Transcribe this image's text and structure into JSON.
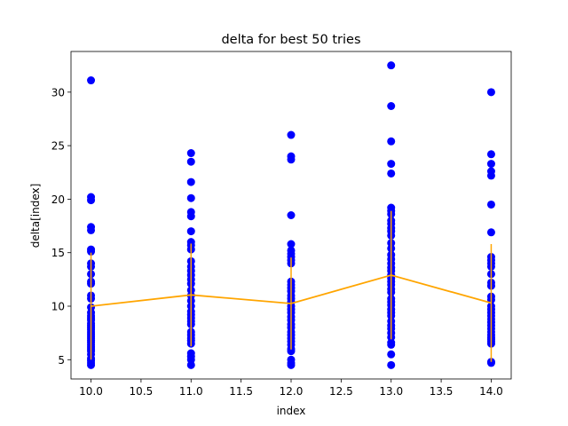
{
  "chart_data": {
    "type": "scatter",
    "title": "delta for best 50 tries",
    "xlabel": "index",
    "ylabel": "delta[index]",
    "xlim": [
      9.8,
      14.2
    ],
    "ylim": [
      3.2,
      33.8
    ],
    "xticks": [
      10.0,
      10.5,
      11.0,
      11.5,
      12.0,
      12.5,
      13.0,
      13.5,
      14.0
    ],
    "xtick_labels": [
      "10.0",
      "10.5",
      "11.0",
      "11.5",
      "12.0",
      "12.5",
      "13.0",
      "13.5",
      "14.0"
    ],
    "yticks": [
      5,
      10,
      15,
      20,
      25,
      30
    ],
    "ytick_labels": [
      "5",
      "10",
      "15",
      "20",
      "25",
      "30"
    ],
    "grid": false,
    "legend": "none",
    "scatter": {
      "color": "#0000ff",
      "points": [
        {
          "x": 10,
          "values": [
            31.1,
            20.2,
            19.9,
            17.4,
            17.1,
            15.3,
            15.1,
            14.0,
            13.7,
            13.0,
            12.3,
            12.1,
            11.0,
            10.7,
            9.9,
            9.4,
            9.1,
            8.9,
            8.7,
            8.4,
            8.2,
            8.0,
            7.8,
            7.6,
            7.4,
            7.2,
            7.0,
            6.8,
            6.6,
            6.4,
            6.2,
            6.0,
            5.8,
            5.5,
            5.1,
            4.9,
            4.7,
            4.5
          ]
        },
        {
          "x": 11,
          "values": [
            24.3,
            23.5,
            21.6,
            20.1,
            18.8,
            18.4,
            17.0,
            16.0,
            15.7,
            15.3,
            14.2,
            13.7,
            13.3,
            12.9,
            12.5,
            12.1,
            11.5,
            11.0,
            10.5,
            10.0,
            9.5,
            9.2,
            8.9,
            8.6,
            8.3,
            7.6,
            7.3,
            7.0,
            6.8,
            6.5,
            5.6,
            5.3,
            5.0,
            4.5
          ]
        },
        {
          "x": 12,
          "values": [
            26.0,
            24.0,
            23.7,
            18.5,
            15.8,
            15.2,
            14.9,
            14.6,
            14.3,
            14.0,
            12.3,
            12.0,
            11.7,
            11.4,
            11.0,
            10.7,
            10.4,
            10.0,
            9.7,
            9.4,
            9.0,
            8.7,
            8.3,
            8.0,
            7.6,
            7.3,
            7.0,
            6.7,
            6.4,
            6.0,
            5.8,
            5.0,
            4.7,
            4.5
          ]
        },
        {
          "x": 13,
          "values": [
            32.5,
            28.7,
            25.4,
            23.3,
            22.4,
            19.2,
            18.9,
            18.6,
            18.0,
            17.7,
            17.3,
            17.0,
            16.6,
            15.9,
            15.4,
            14.8,
            14.4,
            14.0,
            13.6,
            13.3,
            12.9,
            12.6,
            12.3,
            12.0,
            11.6,
            11.3,
            10.7,
            10.4,
            10.1,
            9.7,
            9.4,
            9.1,
            8.6,
            8.2,
            7.9,
            7.5,
            7.1,
            6.6,
            6.4,
            5.5,
            4.5
          ]
        },
        {
          "x": 14,
          "values": [
            30.0,
            24.2,
            23.3,
            22.6,
            22.2,
            19.5,
            16.9,
            14.6,
            14.3,
            14.0,
            13.7,
            13.0,
            12.2,
            11.9,
            10.9,
            10.6,
            10.0,
            9.7,
            9.4,
            9.1,
            8.8,
            8.5,
            8.2,
            7.9,
            7.6,
            7.3,
            7.1,
            6.9,
            6.7,
            6.5,
            4.8,
            4.7
          ]
        }
      ]
    },
    "mean_line": {
      "color": "#ffa500",
      "x": [
        10,
        11,
        12,
        13,
        14
      ],
      "y": [
        10.0,
        11.05,
        10.25,
        12.9,
        10.3
      ],
      "errors": [
        5.0,
        4.8,
        4.3,
        6.0,
        5.5
      ]
    }
  }
}
